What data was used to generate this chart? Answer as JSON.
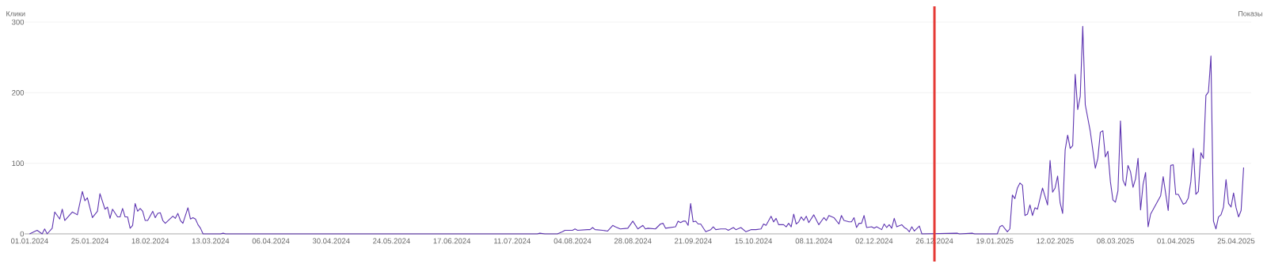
{
  "chart_data": {
    "type": "line",
    "ylabel": "Клики",
    "y2label": "Показы",
    "xlim": [
      "2023-12-30",
      "2025-05-01"
    ],
    "ylim": [
      0,
      300
    ],
    "yticks": [
      0,
      100,
      200,
      300
    ],
    "grid": "y",
    "marker": "none",
    "line_style": "solid",
    "xticks": [
      {
        "value": "2024-01-01",
        "label": "01.01.2024"
      },
      {
        "value": "2024-01-25",
        "label": "25.01.2024"
      },
      {
        "value": "2024-02-18",
        "label": "18.02.2024"
      },
      {
        "value": "2024-03-13",
        "label": "13.03.2024"
      },
      {
        "value": "2024-04-06",
        "label": "06.04.2024"
      },
      {
        "value": "2024-04-30",
        "label": "30.04.2024"
      },
      {
        "value": "2024-05-24",
        "label": "24.05.2024"
      },
      {
        "value": "2024-06-17",
        "label": "17.06.2024"
      },
      {
        "value": "2024-07-11",
        "label": "11.07.2024"
      },
      {
        "value": "2024-08-04",
        "label": "04.08.2024"
      },
      {
        "value": "2024-08-28",
        "label": "28.08.2024"
      },
      {
        "value": "2024-09-21",
        "label": "21.09.2024"
      },
      {
        "value": "2024-10-15",
        "label": "15.10.2024"
      },
      {
        "value": "2024-11-08",
        "label": "08.11.2024"
      },
      {
        "value": "2024-12-02",
        "label": "02.12.2024"
      },
      {
        "value": "2024-12-26",
        "label": "26.12.2024"
      },
      {
        "value": "2025-01-19",
        "label": "19.01.2025"
      },
      {
        "value": "2025-02-12",
        "label": "12.02.2025"
      },
      {
        "value": "2025-03-08",
        "label": "08.03.2025"
      },
      {
        "value": "2025-04-01",
        "label": "01.04.2025"
      },
      {
        "value": "2025-04-25",
        "label": "25.04.2025"
      }
    ],
    "ref_lines": [
      {
        "axis": "x",
        "value": "2024-12-26",
        "color": "#e53935"
      }
    ],
    "series": [
      {
        "color": "#5e35b1",
        "x": [
          "2024-01-01",
          "2024-01-04",
          "2024-01-06",
          "2024-01-07",
          "2024-01-08",
          "2024-01-10",
          "2024-01-11",
          "2024-01-13",
          "2024-01-14",
          "2024-01-15",
          "2024-01-18",
          "2024-01-20",
          "2024-01-22",
          "2024-01-23",
          "2024-01-24",
          "2024-01-26",
          "2024-01-28",
          "2024-01-29",
          "2024-01-31",
          "2024-02-01",
          "2024-02-02",
          "2024-02-03",
          "2024-02-05",
          "2024-02-06",
          "2024-02-07",
          "2024-02-08",
          "2024-02-09",
          "2024-02-10",
          "2024-02-11",
          "2024-02-12",
          "2024-02-13",
          "2024-02-14",
          "2024-02-15",
          "2024-02-16",
          "2024-02-17",
          "2024-02-19",
          "2024-02-20",
          "2024-02-21",
          "2024-02-22",
          "2024-02-23",
          "2024-02-24",
          "2024-02-27",
          "2024-02-28",
          "2024-02-29",
          "2024-03-01",
          "2024-03-02",
          "2024-03-04",
          "2024-03-05",
          "2024-03-06",
          "2024-03-07",
          "2024-03-08",
          "2024-03-09",
          "2024-03-10",
          "2024-03-17",
          "2024-03-18",
          "2024-03-19",
          "2024-07-21",
          "2024-07-22",
          "2024-07-24",
          "2024-07-29",
          "2024-07-31",
          "2024-08-01",
          "2024-08-04",
          "2024-08-05",
          "2024-08-06",
          "2024-08-10",
          "2024-08-11",
          "2024-08-12",
          "2024-08-13",
          "2024-08-16",
          "2024-08-18",
          "2024-08-20",
          "2024-08-21",
          "2024-08-23",
          "2024-08-26",
          "2024-08-28",
          "2024-08-30",
          "2024-09-01",
          "2024-09-02",
          "2024-09-03",
          "2024-09-06",
          "2024-09-08",
          "2024-09-09",
          "2024-09-10",
          "2024-09-14",
          "2024-09-15",
          "2024-09-16",
          "2024-09-17",
          "2024-09-18",
          "2024-09-19",
          "2024-09-20",
          "2024-09-21",
          "2024-09-22",
          "2024-09-23",
          "2024-09-24",
          "2024-09-26",
          "2024-09-28",
          "2024-09-29",
          "2024-09-30",
          "2024-10-02",
          "2024-10-04",
          "2024-10-05",
          "2024-10-07",
          "2024-10-08",
          "2024-10-10",
          "2024-10-12",
          "2024-10-14",
          "2024-10-16",
          "2024-10-18",
          "2024-10-19",
          "2024-10-20",
          "2024-10-22",
          "2024-10-23",
          "2024-10-24",
          "2024-10-25",
          "2024-10-27",
          "2024-10-28",
          "2024-10-29",
          "2024-10-30",
          "2024-10-31",
          "2024-11-01",
          "2024-11-02",
          "2024-11-03",
          "2024-11-04",
          "2024-11-05",
          "2024-11-06",
          "2024-11-08",
          "2024-11-10",
          "2024-11-12",
          "2024-11-13",
          "2024-11-14",
          "2024-11-16",
          "2024-11-18",
          "2024-11-19",
          "2024-11-20",
          "2024-11-22",
          "2024-11-23",
          "2024-11-24",
          "2024-11-25",
          "2024-11-26",
          "2024-11-27",
          "2024-11-28",
          "2024-11-29",
          "2024-12-01",
          "2024-12-02",
          "2024-12-03",
          "2024-12-05",
          "2024-12-06",
          "2024-12-07",
          "2024-12-08",
          "2024-12-09",
          "2024-12-10",
          "2024-12-11",
          "2024-12-13",
          "2024-12-14",
          "2024-12-15",
          "2024-12-16",
          "2024-12-17",
          "2024-12-18",
          "2024-12-20",
          "2024-12-21",
          "2025-01-04",
          "2025-01-05",
          "2025-01-10",
          "2025-01-11",
          "2025-01-20",
          "2025-01-21",
          "2025-01-22",
          "2025-01-24",
          "2025-01-25",
          "2025-01-26",
          "2025-01-27",
          "2025-01-28",
          "2025-01-29",
          "2025-01-30",
          "2025-01-31",
          "2025-02-01",
          "2025-02-02",
          "2025-02-03",
          "2025-02-04",
          "2025-02-05",
          "2025-02-07",
          "2025-02-09",
          "2025-02-10",
          "2025-02-11",
          "2025-02-12",
          "2025-02-13",
          "2025-02-14",
          "2025-02-15",
          "2025-02-16",
          "2025-02-17",
          "2025-02-18",
          "2025-02-19",
          "2025-02-20",
          "2025-02-21",
          "2025-02-22",
          "2025-02-23",
          "2025-02-24",
          "2025-02-26",
          "2025-02-28",
          "2025-03-01",
          "2025-03-02",
          "2025-03-03",
          "2025-03-04",
          "2025-03-05",
          "2025-03-06",
          "2025-03-07",
          "2025-03-08",
          "2025-03-09",
          "2025-03-10",
          "2025-03-11",
          "2025-03-12",
          "2025-03-13",
          "2025-03-14",
          "2025-03-15",
          "2025-03-16",
          "2025-03-17",
          "2025-03-18",
          "2025-03-19",
          "2025-03-20",
          "2025-03-21",
          "2025-03-22",
          "2025-03-26",
          "2025-03-27",
          "2025-03-29",
          "2025-03-30",
          "2025-03-31",
          "2025-04-01",
          "2025-04-02",
          "2025-04-04",
          "2025-04-05",
          "2025-04-06",
          "2025-04-07",
          "2025-04-08",
          "2025-04-09",
          "2025-04-10",
          "2025-04-11",
          "2025-04-12",
          "2025-04-13",
          "2025-04-14",
          "2025-04-15",
          "2025-04-16",
          "2025-04-17",
          "2025-04-18",
          "2025-04-19",
          "2025-04-20",
          "2025-04-21",
          "2025-04-22",
          "2025-04-23",
          "2025-04-24",
          "2025-04-25",
          "2025-04-26",
          "2025-04-27",
          "2025-04-28"
        ],
        "values": [
          0,
          5,
          0,
          7,
          0,
          8,
          31,
          21,
          35,
          19,
          31,
          27,
          60,
          47,
          51,
          23,
          32,
          57,
          35,
          38,
          22,
          35,
          24,
          24,
          36,
          24,
          24,
          8,
          12,
          43,
          32,
          36,
          32,
          19,
          19,
          32,
          23,
          29,
          30,
          19,
          15,
          25,
          22,
          29,
          19,
          15,
          37,
          21,
          23,
          21,
          13,
          8,
          0,
          0,
          1,
          0,
          0,
          1,
          0,
          0,
          3,
          5,
          5,
          7,
          5,
          6,
          6,
          9,
          6,
          5,
          4,
          12,
          10,
          7,
          8,
          18,
          7,
          12,
          7,
          8,
          7,
          14,
          15,
          8,
          10,
          18,
          16,
          18,
          18,
          12,
          43,
          17,
          18,
          14,
          14,
          3,
          6,
          10,
          6,
          7,
          7,
          5,
          9,
          6,
          9,
          3,
          6,
          6,
          7,
          14,
          12,
          25,
          17,
          22,
          13,
          13,
          10,
          15,
          10,
          28,
          14,
          17,
          24,
          19,
          25,
          16,
          27,
          13,
          23,
          19,
          26,
          23,
          14,
          26,
          19,
          17,
          17,
          23,
          9,
          15,
          15,
          26,
          9,
          10,
          8,
          10,
          6,
          14,
          9,
          13,
          8,
          22,
          10,
          13,
          9,
          7,
          3,
          10,
          4,
          11,
          0,
          1,
          0,
          1,
          0,
          0,
          10,
          12,
          3,
          7,
          55,
          50,
          65,
          72,
          69,
          26,
          28,
          41,
          26,
          37,
          35,
          65,
          41,
          104,
          59,
          65,
          82,
          44,
          29,
          119,
          140,
          121,
          125,
          226,
          176,
          195,
          294,
          183,
          145,
          93,
          107,
          144,
          146,
          109,
          117,
          74,
          48,
          45,
          61,
          160,
          76,
          68,
          97,
          88,
          66,
          78,
          107,
          34,
          70,
          87,
          10,
          28,
          54,
          81,
          33,
          97,
          98,
          56,
          56,
          42,
          44,
          51,
          74,
          121,
          56,
          60,
          115,
          107,
          196,
          201,
          252,
          18,
          7,
          24,
          27,
          38,
          77,
          43,
          38,
          58,
          37,
          24,
          33,
          94
        ]
      }
    ]
  }
}
